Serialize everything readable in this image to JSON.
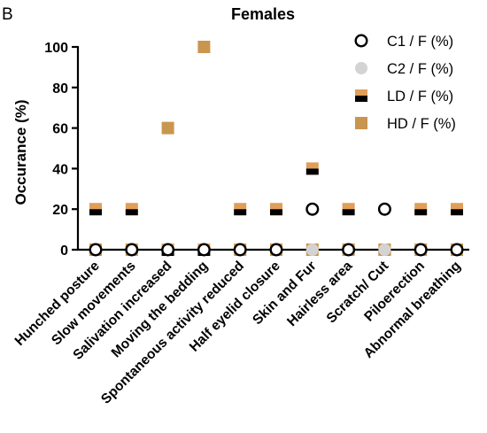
{
  "chart_data": {
    "type": "scatter",
    "panel_label": "B",
    "title": "Females",
    "xlabel": "",
    "ylabel": "Occurance (%)",
    "ylim": [
      0,
      100
    ],
    "yticks": [
      0,
      20,
      40,
      60,
      80,
      100
    ],
    "grid": false,
    "legend_position": "top-right",
    "categories": [
      "Hunched posture",
      "Slow movements",
      "Salivation increased",
      "Moving the bedding",
      "Spontaneous activity reduced",
      "Half eyelid closure",
      "Skin and Fur",
      "Hairless area",
      "Scratch/ Cut",
      "Piloerection",
      "Abnormal breathing"
    ],
    "series": [
      {
        "name": "C1 / F (%)",
        "marker": "open-circle",
        "color": "#000000",
        "values": [
          0,
          0,
          0,
          0,
          0,
          0,
          20,
          0,
          20,
          0,
          0
        ]
      },
      {
        "name": "C2 / F (%)",
        "marker": "filled-circle",
        "color": "#d3d3d3",
        "values": [
          0,
          0,
          0,
          0,
          0,
          0,
          0,
          0,
          0,
          0,
          0
        ]
      },
      {
        "name": "LD / F (%)",
        "marker": "half-square",
        "color": "#e09e58",
        "values": [
          20,
          20,
          0,
          0,
          20,
          20,
          40,
          20,
          0,
          20,
          20
        ]
      },
      {
        "name": "HD / F (%)",
        "marker": "filled-square",
        "color": "#c8964e",
        "values": [
          0,
          0,
          60,
          100,
          0,
          0,
          0,
          0,
          0,
          0,
          0
        ]
      }
    ]
  }
}
